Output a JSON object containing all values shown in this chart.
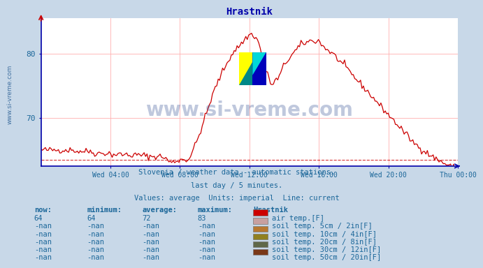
{
  "title": "Hrastnik",
  "bg_color": "#c8d8e8",
  "plot_bg_color": "#ffffff",
  "grid_color": "#ffb0b0",
  "line_color": "#cc0000",
  "axis_color": "#0000aa",
  "text_color": "#1a6699",
  "subtitle_lines": [
    "Slovenia / weather data - automatic stations.",
    "last day / 5 minutes.",
    "Values: average  Units: imperial  Line: current"
  ],
  "ylabel_text": "www.si-vreme.com",
  "watermark_text": "www.si-vreme.com",
  "x_tick_labels": [
    "Wed 04:00",
    "Wed 08:00",
    "Wed 12:00",
    "Wed 16:00",
    "Wed 20:00",
    "Thu 00:00"
  ],
  "y_ticks": [
    70,
    80
  ],
  "ylim": [
    62.5,
    85.5
  ],
  "now_val": "64",
  "min_val": "64",
  "avg_val": "72",
  "max_val": "83",
  "legend_items": [
    {
      "color": "#cc0000",
      "label": "air temp.[F]"
    },
    {
      "color": "#c8a0a0",
      "label": "soil temp. 5cm / 2in[F]"
    },
    {
      "color": "#b87830",
      "label": "soil temp. 10cm / 4in[F]"
    },
    {
      "color": "#908020",
      "label": "soil temp. 20cm / 8in[F]"
    },
    {
      "color": "#606848",
      "label": "soil temp. 30cm / 12in[F]"
    },
    {
      "color": "#7a3818",
      "label": "soil temp. 50cm / 20in[F]"
    }
  ]
}
